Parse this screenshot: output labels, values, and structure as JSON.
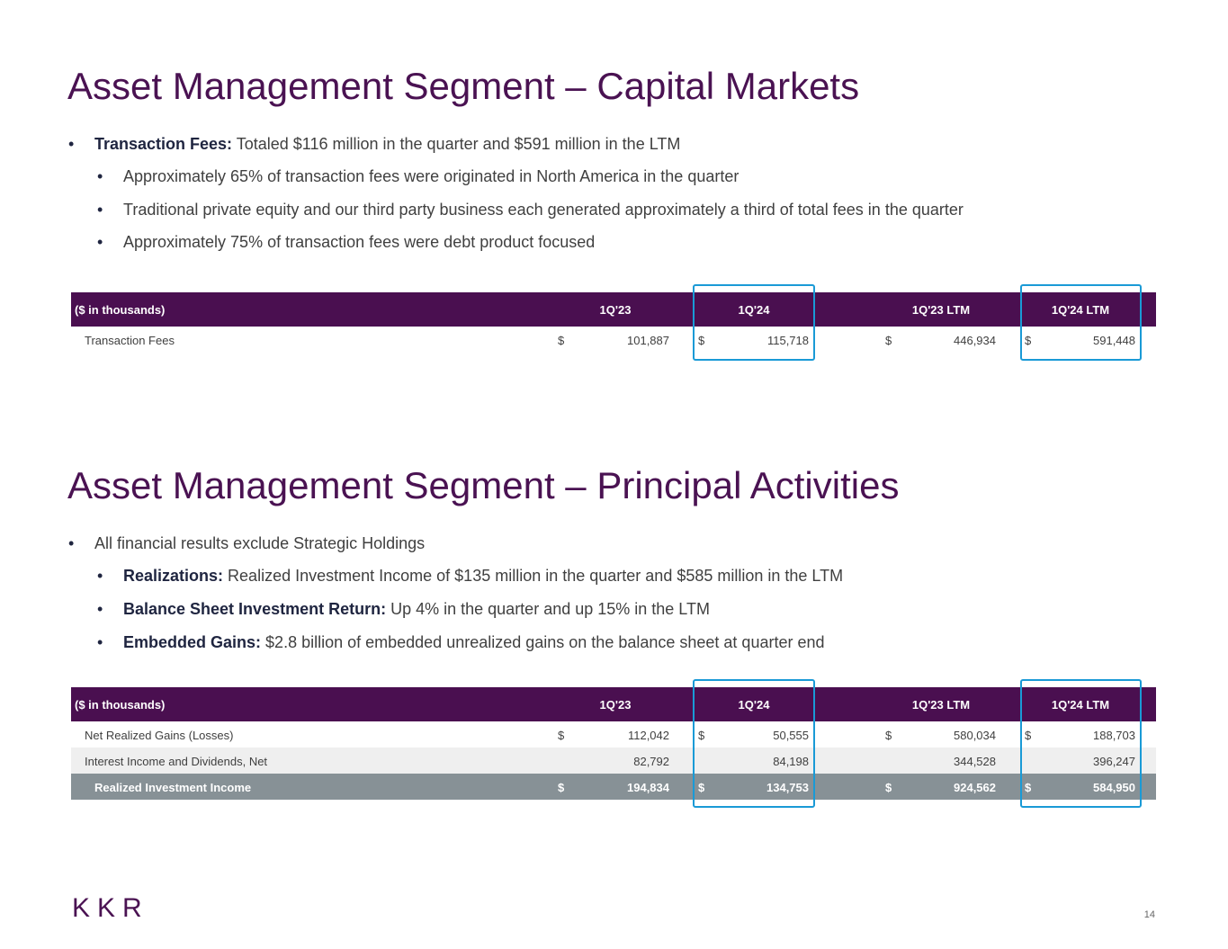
{
  "sections": [
    {
      "title": "Asset Management Segment – Capital Markets",
      "bullets": [
        {
          "bold": "Transaction Fees:",
          "text": "Totaled $116 million in the quarter and $591 million in the LTM",
          "sub": [
            {
              "text": "Approximately 65% of transaction fees were originated in North America in the quarter"
            },
            {
              "text": "Traditional private equity and our third party business each generated approximately a third of total fees in the quarter"
            },
            {
              "text": "Approximately 75% of transaction fees were debt product focused"
            }
          ]
        }
      ],
      "table": {
        "header": [
          "($ in thousands)",
          "1Q'23",
          "1Q'24",
          "1Q'23 LTM",
          "1Q'24 LTM"
        ],
        "rows": [
          {
            "label": "Transaction Fees",
            "cells": [
              {
                "currency": "$",
                "value": "101,887"
              },
              {
                "currency": "$",
                "value": "115,718"
              },
              {
                "currency": "$",
                "value": "446,934"
              },
              {
                "currency": "$",
                "value": "591,448"
              }
            ]
          }
        ]
      }
    },
    {
      "title": "Asset Management Segment – Principal Activities",
      "bullets": [
        {
          "text": "All financial results exclude Strategic Holdings",
          "sub": [
            {
              "bold": "Realizations:",
              "text": "Realized Investment Income of $135 million in the quarter and $585 million in the LTM"
            },
            {
              "bold": "Balance Sheet Investment Return:",
              "text": "Up 4% in the quarter and up 15% in the LTM"
            },
            {
              "bold": "Embedded Gains:",
              "text": "$2.8 billion of embedded unrealized gains on the balance sheet at quarter end"
            }
          ]
        }
      ],
      "table": {
        "header": [
          "($ in thousands)",
          "1Q'23",
          "1Q'24",
          "1Q'23 LTM",
          "1Q'24 LTM"
        ],
        "rows": [
          {
            "label": "Net Realized Gains (Losses)",
            "cells": [
              {
                "currency": "$",
                "value": "112,042"
              },
              {
                "currency": "$",
                "value": "50,555"
              },
              {
                "currency": "$",
                "value": "580,034"
              },
              {
                "currency": "$",
                "value": "188,703"
              }
            ]
          },
          {
            "label": "Interest Income and Dividends, Net",
            "cells": [
              {
                "value": "82,792"
              },
              {
                "value": "84,198"
              },
              {
                "value": "344,528"
              },
              {
                "value": "396,247"
              }
            ]
          }
        ],
        "total_row": {
          "label": "Realized Investment Income",
          "cells": [
            {
              "currency": "$",
              "value": "194,834"
            },
            {
              "currency": "$",
              "value": "134,753"
            },
            {
              "currency": "$",
              "value": "924,562"
            },
            {
              "currency": "$",
              "value": "584,950"
            }
          ]
        }
      }
    }
  ],
  "footer": {
    "logo": "KKR",
    "page": "14"
  }
}
